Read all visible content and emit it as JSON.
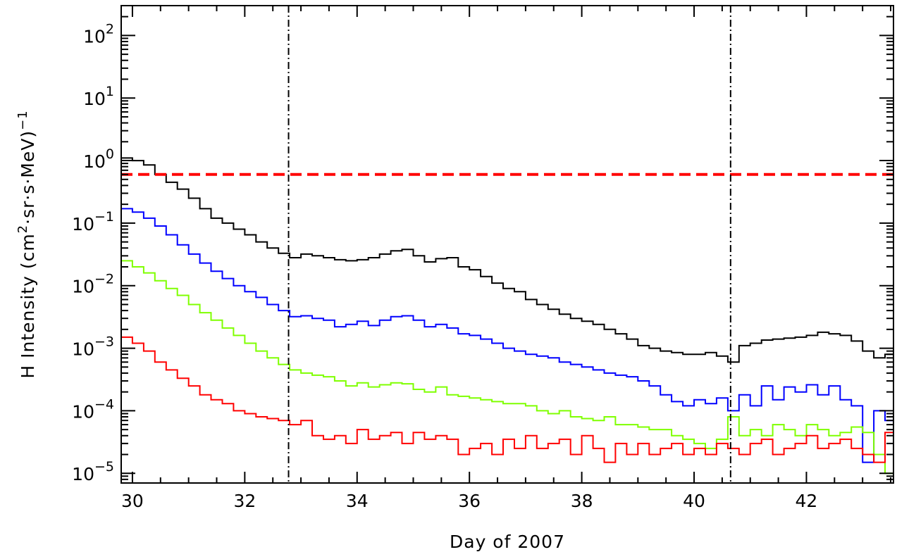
{
  "chart_data": {
    "type": "line",
    "xlabel": "Day of 2007",
    "ylabel_prefix": "H Intensity (cm",
    "ylabel_sup1": "2",
    "ylabel_mid": "·sr·s·MeV)",
    "ylabel_sup2": "−1",
    "xlim": [
      29.8,
      43.55
    ],
    "ylim": [
      7e-06,
      300
    ],
    "y_scale": "log",
    "x_ticks": [
      30,
      32,
      34,
      36,
      38,
      40,
      42
    ],
    "y_tick_labels": [
      {
        "value": 1e-05,
        "base": "10",
        "exp": "−5"
      },
      {
        "value": 0.0001,
        "base": "10",
        "exp": "−4"
      },
      {
        "value": 0.001,
        "base": "10",
        "exp": "−3"
      },
      {
        "value": 0.01,
        "base": "10",
        "exp": "−2"
      },
      {
        "value": 0.1,
        "base": "10",
        "exp": "−1"
      },
      {
        "value": 1,
        "base": "10",
        "exp": "0"
      },
      {
        "value": 10,
        "base": "10",
        "exp": "1"
      },
      {
        "value": 100,
        "base": "10",
        "exp": "2"
      }
    ],
    "vertical_lines": [
      32.78,
      40.65
    ],
    "threshold": {
      "value": 0.6,
      "color": "#ff0000"
    },
    "series": [
      {
        "color": "#000000",
        "x": [
          29.8,
          30.0,
          30.2,
          30.4,
          30.6,
          30.8,
          31.0,
          31.2,
          31.4,
          31.6,
          31.8,
          32.0,
          32.2,
          32.4,
          32.6,
          32.8,
          33.0,
          33.2,
          33.4,
          33.6,
          33.8,
          34.0,
          34.2,
          34.4,
          34.6,
          34.8,
          35.0,
          35.2,
          35.4,
          35.6,
          35.8,
          36.0,
          36.2,
          36.4,
          36.6,
          36.8,
          37.0,
          37.2,
          37.4,
          37.6,
          37.8,
          38.0,
          38.2,
          38.4,
          38.6,
          38.8,
          39.0,
          39.2,
          39.4,
          39.6,
          39.8,
          40.0,
          40.2,
          40.4,
          40.6,
          40.8,
          41.0,
          41.2,
          41.4,
          41.6,
          41.8,
          42.0,
          42.2,
          42.4,
          42.6,
          42.8,
          43.0,
          43.2,
          43.4
        ],
        "y": [
          1.1,
          1.0,
          0.85,
          0.6,
          0.45,
          0.35,
          0.25,
          0.17,
          0.12,
          0.1,
          0.08,
          0.065,
          0.05,
          0.04,
          0.033,
          0.028,
          0.032,
          0.03,
          0.028,
          0.026,
          0.025,
          0.026,
          0.028,
          0.032,
          0.036,
          0.038,
          0.03,
          0.024,
          0.027,
          0.028,
          0.02,
          0.018,
          0.014,
          0.011,
          0.009,
          0.008,
          0.006,
          0.005,
          0.0042,
          0.0035,
          0.003,
          0.0027,
          0.0024,
          0.002,
          0.0017,
          0.0014,
          0.0011,
          0.001,
          0.0009,
          0.00085,
          0.0008,
          0.0008,
          0.00085,
          0.00075,
          0.0006,
          0.0011,
          0.0012,
          0.00135,
          0.0014,
          0.00145,
          0.0015,
          0.0016,
          0.0018,
          0.0017,
          0.0016,
          0.0013,
          0.0009,
          0.0007,
          0.0008
        ]
      },
      {
        "color": "#0000ff",
        "x": [
          29.8,
          30.0,
          30.2,
          30.4,
          30.6,
          30.8,
          31.0,
          31.2,
          31.4,
          31.6,
          31.8,
          32.0,
          32.2,
          32.4,
          32.6,
          32.8,
          33.0,
          33.2,
          33.4,
          33.6,
          33.8,
          34.0,
          34.2,
          34.4,
          34.6,
          34.8,
          35.0,
          35.2,
          35.4,
          35.6,
          35.8,
          36.0,
          36.2,
          36.4,
          36.6,
          36.8,
          37.0,
          37.2,
          37.4,
          37.6,
          37.8,
          38.0,
          38.2,
          38.4,
          38.6,
          38.8,
          39.0,
          39.2,
          39.4,
          39.6,
          39.8,
          40.0,
          40.2,
          40.4,
          40.6,
          40.8,
          41.0,
          41.2,
          41.4,
          41.6,
          41.8,
          42.0,
          42.2,
          42.4,
          42.6,
          42.8,
          43.0,
          43.2,
          43.4
        ],
        "y": [
          0.17,
          0.15,
          0.12,
          0.09,
          0.065,
          0.045,
          0.032,
          0.023,
          0.017,
          0.013,
          0.01,
          0.008,
          0.0065,
          0.005,
          0.004,
          0.0032,
          0.0033,
          0.003,
          0.0028,
          0.0022,
          0.0024,
          0.0027,
          0.0023,
          0.0028,
          0.0032,
          0.0033,
          0.0028,
          0.0022,
          0.0024,
          0.0021,
          0.0017,
          0.0016,
          0.0014,
          0.0012,
          0.001,
          0.0009,
          0.0008,
          0.00075,
          0.0007,
          0.0006,
          0.00055,
          0.0005,
          0.00045,
          0.0004,
          0.00037,
          0.00035,
          0.0003,
          0.00025,
          0.00018,
          0.00014,
          0.00012,
          0.00015,
          0.00013,
          0.00016,
          0.0001,
          0.00018,
          0.00012,
          0.00025,
          0.00015,
          0.00024,
          0.0002,
          0.00026,
          0.00018,
          0.00025,
          0.00015,
          0.00012,
          1.5e-05,
          0.0001,
          7e-05
        ]
      },
      {
        "color": "#7fff00",
        "x": [
          29.8,
          30.0,
          30.2,
          30.4,
          30.6,
          30.8,
          31.0,
          31.2,
          31.4,
          31.6,
          31.8,
          32.0,
          32.2,
          32.4,
          32.6,
          32.8,
          33.0,
          33.2,
          33.4,
          33.6,
          33.8,
          34.0,
          34.2,
          34.4,
          34.6,
          34.8,
          35.0,
          35.2,
          35.4,
          35.6,
          35.8,
          36.0,
          36.2,
          36.4,
          36.6,
          36.8,
          37.0,
          37.2,
          37.4,
          37.6,
          37.8,
          38.0,
          38.2,
          38.4,
          38.6,
          38.8,
          39.0,
          39.2,
          39.4,
          39.6,
          39.8,
          40.0,
          40.2,
          40.4,
          40.6,
          40.8,
          41.0,
          41.2,
          41.4,
          41.6,
          41.8,
          42.0,
          42.2,
          42.4,
          42.6,
          42.8,
          43.0,
          43.2,
          43.4
        ],
        "y": [
          0.025,
          0.02,
          0.016,
          0.012,
          0.009,
          0.007,
          0.005,
          0.0037,
          0.0028,
          0.0021,
          0.0016,
          0.0012,
          0.0009,
          0.0007,
          0.00055,
          0.00045,
          0.0004,
          0.00037,
          0.00035,
          0.0003,
          0.00025,
          0.00028,
          0.00024,
          0.00026,
          0.00028,
          0.00027,
          0.00022,
          0.0002,
          0.00024,
          0.00018,
          0.00017,
          0.00016,
          0.00015,
          0.00014,
          0.00013,
          0.00013,
          0.00012,
          0.0001,
          9e-05,
          0.0001,
          8e-05,
          7.5e-05,
          7e-05,
          8e-05,
          6e-05,
          6e-05,
          5.5e-05,
          5e-05,
          5e-05,
          4e-05,
          3.5e-05,
          3e-05,
          2.5e-05,
          3.5e-05,
          8e-05,
          4e-05,
          5e-05,
          4e-05,
          6e-05,
          5e-05,
          4e-05,
          6e-05,
          5e-05,
          4e-05,
          4.5e-05,
          5.5e-05,
          4.5e-05,
          2e-05,
          1e-05
        ]
      },
      {
        "color": "#ff0000",
        "x": [
          29.8,
          30.0,
          30.2,
          30.4,
          30.6,
          30.8,
          31.0,
          31.2,
          31.4,
          31.6,
          31.8,
          32.0,
          32.2,
          32.4,
          32.6,
          32.8,
          33.0,
          33.2,
          33.4,
          33.6,
          33.8,
          34.0,
          34.2,
          34.4,
          34.6,
          34.8,
          35.0,
          35.2,
          35.4,
          35.6,
          35.8,
          36.0,
          36.2,
          36.4,
          36.6,
          36.8,
          37.0,
          37.2,
          37.4,
          37.6,
          37.8,
          38.0,
          38.2,
          38.4,
          38.6,
          38.8,
          39.0,
          39.2,
          39.4,
          39.6,
          39.8,
          40.0,
          40.2,
          40.4,
          40.6,
          40.8,
          41.0,
          41.2,
          41.4,
          41.6,
          41.8,
          42.0,
          42.2,
          42.4,
          42.6,
          42.8,
          43.0,
          43.2,
          43.4
        ],
        "y": [
          0.0015,
          0.0012,
          0.0009,
          0.0006,
          0.00045,
          0.00033,
          0.00025,
          0.00018,
          0.00015,
          0.00013,
          0.0001,
          9e-05,
          8e-05,
          7.5e-05,
          7e-05,
          6e-05,
          7e-05,
          4e-05,
          3.5e-05,
          4e-05,
          3e-05,
          5e-05,
          3.5e-05,
          4e-05,
          4.5e-05,
          3e-05,
          4.5e-05,
          3.5e-05,
          4e-05,
          3.5e-05,
          2e-05,
          2.5e-05,
          3e-05,
          2e-05,
          3.5e-05,
          2.5e-05,
          4e-05,
          2.5e-05,
          3e-05,
          3.5e-05,
          2e-05,
          4e-05,
          2.5e-05,
          1.5e-05,
          3e-05,
          2e-05,
          3e-05,
          2e-05,
          2.5e-05,
          3e-05,
          2e-05,
          2.5e-05,
          2e-05,
          3e-05,
          2.5e-05,
          2e-05,
          3e-05,
          3.5e-05,
          2e-05,
          2.5e-05,
          3e-05,
          4e-05,
          2.5e-05,
          3e-05,
          3.5e-05,
          2.5e-05,
          2e-05,
          1.5e-05,
          4.5e-05
        ]
      }
    ]
  }
}
